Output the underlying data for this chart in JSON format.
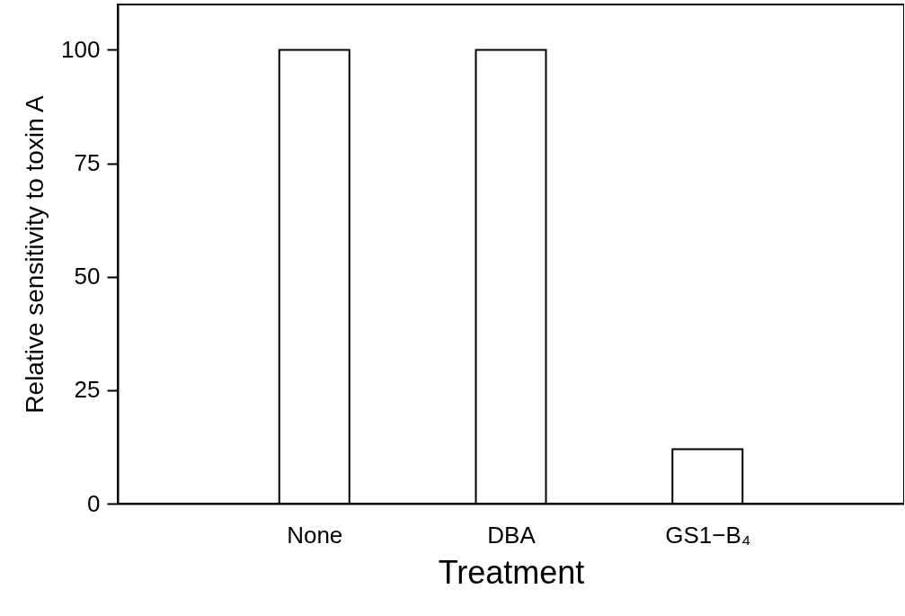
{
  "chart_data": {
    "type": "bar",
    "xlabel": "Treatment",
    "ylabel": "Relative sensitivity to toxin A",
    "categories": [
      "None",
      "DBA",
      "GS1−B₄"
    ],
    "values": [
      100,
      100,
      12
    ],
    "color": "#ffffff",
    "ylim": [
      0,
      110
    ],
    "yticks": [
      0,
      25,
      50,
      75,
      100
    ],
    "grid": false
  }
}
